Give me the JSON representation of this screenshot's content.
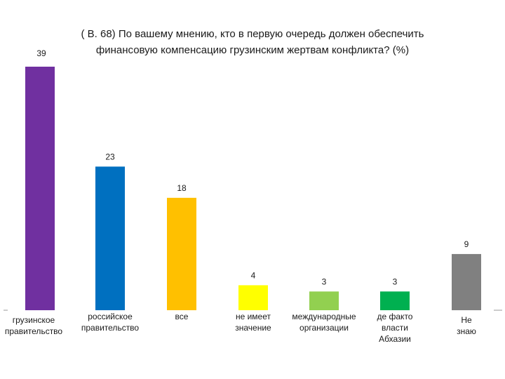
{
  "chart_data": {
    "type": "bar",
    "title": [
      "( В. 68)  По вашему мнению, кто в первую очередь должен обеспечить",
      "финансовую компенсацию грузинским жертвам конфликта? (%)"
    ],
    "xlabel": "",
    "ylabel": "",
    "ylim": [
      0,
      39
    ],
    "grid": false,
    "categories": [
      [
        "грузинское",
        "правительство"
      ],
      [
        "российское",
        "правительство"
      ],
      [
        "все"
      ],
      [
        "не  имеет",
        "значение"
      ],
      [
        "международные",
        "организации"
      ],
      [
        "де факто",
        "власти",
        "Абхазии"
      ],
      [
        "Не",
        "знаю"
      ]
    ],
    "values": [
      39,
      23,
      18,
      4,
      3,
      3,
      9
    ],
    "colors": [
      "#7030a0",
      "#0070c0",
      "#ffc000",
      "#ffff00",
      "#92d050",
      "#00b050",
      "#808080"
    ]
  }
}
